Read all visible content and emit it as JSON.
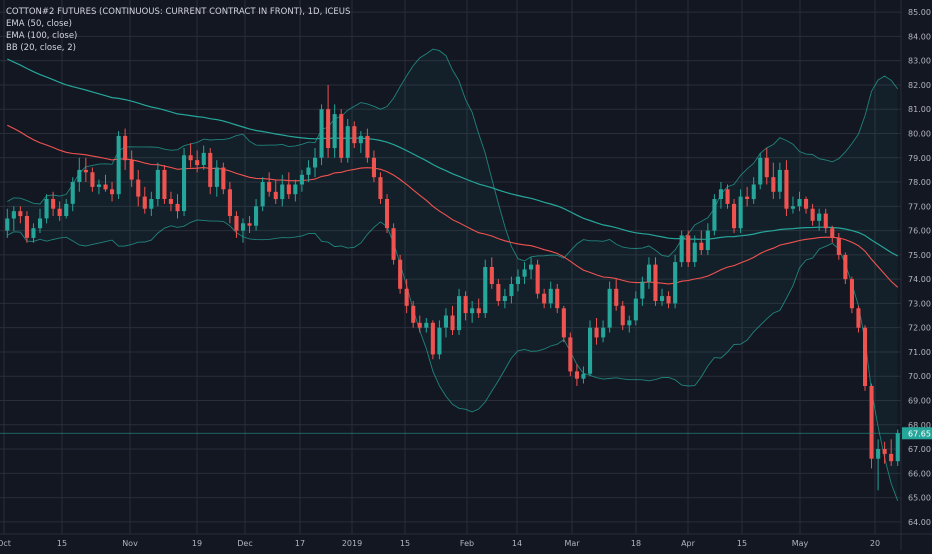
{
  "legend": {
    "title": "COTTON#2 FUTURES (CONTINUOUS: CURRENT CONTRACT IN FRONT), 1D, ICEUS",
    "ema50": "EMA (50, close)",
    "ema100": "EMA (100, close)",
    "bb": "BB (20, close, 2)"
  },
  "chart_data": {
    "type": "candlestick",
    "title": "COTTON#2 FUTURES (CONTINUOUS: CURRENT CONTRACT IN FRONT), 1D, ICEUS",
    "ylim": [
      63.5,
      85.5
    ],
    "grid": true,
    "colors": {
      "up": "#26a69a",
      "down": "#ef5350",
      "ema50": "#ef5350",
      "ema100": "#26a69a",
      "bb": "#26a69a",
      "background": "#131722",
      "grid": "#2a2e39"
    },
    "y_ticks": [
      "85.00",
      "84.00",
      "83.00",
      "82.00",
      "81.00",
      "80.00",
      "79.00",
      "78.00",
      "77.00",
      "76.00",
      "75.00",
      "74.00",
      "73.00",
      "72.00",
      "71.00",
      "70.00",
      "69.00",
      "68.00",
      "67.00",
      "66.00",
      "65.00",
      "64.00"
    ],
    "x_ticks": [
      "Oct",
      "15",
      "Nov",
      "19",
      "Dec",
      "17",
      "2019",
      "15",
      "Feb",
      "14",
      "Mar",
      "18",
      "Apr",
      "15",
      "May",
      "20"
    ],
    "last_price": "67.65",
    "candles": [
      {
        "o": 76.0,
        "h": 76.9,
        "l": 75.7,
        "c": 76.5
      },
      {
        "o": 76.5,
        "h": 77.0,
        "l": 76.0,
        "c": 76.8
      },
      {
        "o": 76.8,
        "h": 77.0,
        "l": 76.3,
        "c": 76.6
      },
      {
        "o": 76.6,
        "h": 76.8,
        "l": 75.5,
        "c": 75.7
      },
      {
        "o": 75.7,
        "h": 76.3,
        "l": 75.5,
        "c": 76.1
      },
      {
        "o": 76.1,
        "h": 76.9,
        "l": 75.9,
        "c": 76.5
      },
      {
        "o": 76.5,
        "h": 77.5,
        "l": 76.3,
        "c": 77.3
      },
      {
        "o": 77.3,
        "h": 77.6,
        "l": 76.6,
        "c": 76.9
      },
      {
        "o": 76.9,
        "h": 77.2,
        "l": 76.4,
        "c": 76.6
      },
      {
        "o": 76.6,
        "h": 77.3,
        "l": 76.5,
        "c": 77.1
      },
      {
        "o": 77.1,
        "h": 78.2,
        "l": 76.8,
        "c": 78.0
      },
      {
        "o": 78.0,
        "h": 79.0,
        "l": 77.6,
        "c": 78.5
      },
      {
        "o": 78.5,
        "h": 79.0,
        "l": 78.0,
        "c": 78.4
      },
      {
        "o": 78.4,
        "h": 78.6,
        "l": 77.6,
        "c": 77.8
      },
      {
        "o": 77.8,
        "h": 78.1,
        "l": 77.5,
        "c": 77.9
      },
      {
        "o": 77.9,
        "h": 78.3,
        "l": 77.6,
        "c": 77.7
      },
      {
        "o": 77.7,
        "h": 78.0,
        "l": 77.2,
        "c": 77.5
      },
      {
        "o": 77.5,
        "h": 80.1,
        "l": 77.3,
        "c": 79.9
      },
      {
        "o": 79.9,
        "h": 80.2,
        "l": 78.5,
        "c": 78.9
      },
      {
        "o": 78.9,
        "h": 79.3,
        "l": 77.8,
        "c": 78.1
      },
      {
        "o": 78.1,
        "h": 78.5,
        "l": 77.0,
        "c": 77.4
      },
      {
        "o": 77.4,
        "h": 77.8,
        "l": 76.7,
        "c": 76.9
      },
      {
        "o": 76.9,
        "h": 77.6,
        "l": 76.6,
        "c": 77.3
      },
      {
        "o": 77.3,
        "h": 78.8,
        "l": 77.0,
        "c": 78.5
      },
      {
        "o": 78.5,
        "h": 78.7,
        "l": 77.1,
        "c": 77.3
      },
      {
        "o": 77.3,
        "h": 77.6,
        "l": 76.8,
        "c": 77.1
      },
      {
        "o": 77.1,
        "h": 77.5,
        "l": 76.5,
        "c": 76.8
      },
      {
        "o": 76.8,
        "h": 79.4,
        "l": 76.6,
        "c": 79.1
      },
      {
        "o": 79.1,
        "h": 79.6,
        "l": 78.6,
        "c": 78.9
      },
      {
        "o": 78.9,
        "h": 79.3,
        "l": 78.4,
        "c": 78.7
      },
      {
        "o": 78.7,
        "h": 79.5,
        "l": 78.5,
        "c": 79.2
      },
      {
        "o": 79.2,
        "h": 79.4,
        "l": 77.5,
        "c": 77.8
      },
      {
        "o": 77.8,
        "h": 78.9,
        "l": 77.4,
        "c": 78.6
      },
      {
        "o": 78.6,
        "h": 78.8,
        "l": 77.5,
        "c": 77.7
      },
      {
        "o": 77.7,
        "h": 78.0,
        "l": 76.3,
        "c": 76.6
      },
      {
        "o": 76.6,
        "h": 76.8,
        "l": 75.7,
        "c": 76.0
      },
      {
        "o": 76.0,
        "h": 76.5,
        "l": 75.5,
        "c": 76.3
      },
      {
        "o": 76.3,
        "h": 76.6,
        "l": 75.9,
        "c": 76.2
      },
      {
        "o": 76.2,
        "h": 77.3,
        "l": 76.0,
        "c": 77.0
      },
      {
        "o": 77.0,
        "h": 78.2,
        "l": 76.8,
        "c": 78.0
      },
      {
        "o": 78.0,
        "h": 78.4,
        "l": 77.4,
        "c": 77.6
      },
      {
        "o": 77.6,
        "h": 78.1,
        "l": 77.1,
        "c": 77.3
      },
      {
        "o": 77.3,
        "h": 78.3,
        "l": 77.0,
        "c": 77.9
      },
      {
        "o": 77.9,
        "h": 78.4,
        "l": 77.3,
        "c": 77.5
      },
      {
        "o": 77.5,
        "h": 78.1,
        "l": 77.2,
        "c": 77.9
      },
      {
        "o": 77.9,
        "h": 78.5,
        "l": 77.6,
        "c": 78.3
      },
      {
        "o": 78.3,
        "h": 78.9,
        "l": 78.0,
        "c": 78.6
      },
      {
        "o": 78.6,
        "h": 79.4,
        "l": 78.2,
        "c": 79.0
      },
      {
        "o": 79.0,
        "h": 81.2,
        "l": 78.7,
        "c": 81.0
      },
      {
        "o": 81.0,
        "h": 82.0,
        "l": 79.0,
        "c": 79.4
      },
      {
        "o": 79.4,
        "h": 81.2,
        "l": 79.0,
        "c": 80.8
      },
      {
        "o": 80.8,
        "h": 81.0,
        "l": 78.8,
        "c": 79.0
      },
      {
        "o": 79.0,
        "h": 80.6,
        "l": 78.8,
        "c": 80.3
      },
      {
        "o": 80.3,
        "h": 80.5,
        "l": 79.4,
        "c": 79.6
      },
      {
        "o": 79.6,
        "h": 80.1,
        "l": 79.2,
        "c": 79.9
      },
      {
        "o": 79.9,
        "h": 80.2,
        "l": 78.8,
        "c": 79.0
      },
      {
        "o": 79.0,
        "h": 79.3,
        "l": 78.0,
        "c": 78.2
      },
      {
        "o": 78.2,
        "h": 78.4,
        "l": 77.1,
        "c": 77.3
      },
      {
        "o": 77.3,
        "h": 77.5,
        "l": 75.9,
        "c": 76.1
      },
      {
        "o": 76.1,
        "h": 76.3,
        "l": 74.6,
        "c": 74.8
      },
      {
        "o": 74.8,
        "h": 75.0,
        "l": 73.4,
        "c": 73.6
      },
      {
        "o": 73.6,
        "h": 74.0,
        "l": 72.6,
        "c": 72.9
      },
      {
        "o": 72.9,
        "h": 73.1,
        "l": 72.0,
        "c": 72.2
      },
      {
        "o": 72.2,
        "h": 72.5,
        "l": 71.8,
        "c": 72.0
      },
      {
        "o": 72.0,
        "h": 72.4,
        "l": 71.8,
        "c": 72.2
      },
      {
        "o": 72.2,
        "h": 72.3,
        "l": 70.7,
        "c": 70.9
      },
      {
        "o": 70.9,
        "h": 72.3,
        "l": 70.7,
        "c": 72.0
      },
      {
        "o": 72.0,
        "h": 72.8,
        "l": 71.6,
        "c": 72.5
      },
      {
        "o": 72.5,
        "h": 72.9,
        "l": 71.7,
        "c": 71.9
      },
      {
        "o": 71.9,
        "h": 73.6,
        "l": 71.7,
        "c": 73.3
      },
      {
        "o": 73.3,
        "h": 73.5,
        "l": 72.3,
        "c": 72.6
      },
      {
        "o": 72.6,
        "h": 73.1,
        "l": 72.2,
        "c": 72.8
      },
      {
        "o": 72.8,
        "h": 73.2,
        "l": 72.4,
        "c": 72.6
      },
      {
        "o": 72.6,
        "h": 74.8,
        "l": 72.4,
        "c": 74.5
      },
      {
        "o": 74.5,
        "h": 74.9,
        "l": 73.6,
        "c": 73.8
      },
      {
        "o": 73.8,
        "h": 74.0,
        "l": 72.9,
        "c": 73.1
      },
      {
        "o": 73.1,
        "h": 73.6,
        "l": 72.8,
        "c": 73.3
      },
      {
        "o": 73.3,
        "h": 74.1,
        "l": 73.0,
        "c": 73.8
      },
      {
        "o": 73.8,
        "h": 74.4,
        "l": 73.5,
        "c": 74.1
      },
      {
        "o": 74.1,
        "h": 74.7,
        "l": 73.8,
        "c": 74.4
      },
      {
        "o": 74.4,
        "h": 74.9,
        "l": 74.0,
        "c": 74.6
      },
      {
        "o": 74.6,
        "h": 74.8,
        "l": 73.2,
        "c": 73.4
      },
      {
        "o": 73.4,
        "h": 73.6,
        "l": 72.8,
        "c": 73.0
      },
      {
        "o": 73.0,
        "h": 73.9,
        "l": 72.8,
        "c": 73.6
      },
      {
        "o": 73.6,
        "h": 73.8,
        "l": 72.6,
        "c": 72.8
      },
      {
        "o": 72.8,
        "h": 72.9,
        "l": 71.4,
        "c": 71.6
      },
      {
        "o": 71.6,
        "h": 71.8,
        "l": 70.0,
        "c": 70.2
      },
      {
        "o": 70.2,
        "h": 70.5,
        "l": 69.6,
        "c": 69.9
      },
      {
        "o": 69.9,
        "h": 70.4,
        "l": 69.7,
        "c": 70.1
      },
      {
        "o": 70.1,
        "h": 72.3,
        "l": 70.0,
        "c": 72.0
      },
      {
        "o": 72.0,
        "h": 72.4,
        "l": 71.3,
        "c": 71.6
      },
      {
        "o": 71.6,
        "h": 72.3,
        "l": 71.4,
        "c": 72.0
      },
      {
        "o": 72.0,
        "h": 73.9,
        "l": 71.8,
        "c": 73.6
      },
      {
        "o": 73.6,
        "h": 74.0,
        "l": 72.7,
        "c": 72.9
      },
      {
        "o": 72.9,
        "h": 73.1,
        "l": 71.9,
        "c": 72.1
      },
      {
        "o": 72.1,
        "h": 72.5,
        "l": 71.8,
        "c": 72.3
      },
      {
        "o": 72.3,
        "h": 73.5,
        "l": 72.1,
        "c": 73.2
      },
      {
        "o": 73.2,
        "h": 74.1,
        "l": 72.9,
        "c": 73.9
      },
      {
        "o": 73.9,
        "h": 74.9,
        "l": 73.6,
        "c": 74.6
      },
      {
        "o": 74.6,
        "h": 74.9,
        "l": 72.9,
        "c": 73.1
      },
      {
        "o": 73.1,
        "h": 73.6,
        "l": 72.9,
        "c": 73.3
      },
      {
        "o": 73.3,
        "h": 73.5,
        "l": 72.8,
        "c": 73.0
      },
      {
        "o": 73.0,
        "h": 75.0,
        "l": 72.8,
        "c": 74.7
      },
      {
        "o": 74.7,
        "h": 76.0,
        "l": 74.5,
        "c": 75.8
      },
      {
        "o": 75.8,
        "h": 76.0,
        "l": 74.5,
        "c": 74.7
      },
      {
        "o": 74.7,
        "h": 75.8,
        "l": 74.5,
        "c": 75.5
      },
      {
        "o": 75.5,
        "h": 76.0,
        "l": 75.0,
        "c": 75.2
      },
      {
        "o": 75.2,
        "h": 76.3,
        "l": 75.0,
        "c": 76.0
      },
      {
        "o": 76.0,
        "h": 77.5,
        "l": 75.8,
        "c": 77.3
      },
      {
        "o": 77.3,
        "h": 78.0,
        "l": 76.9,
        "c": 77.7
      },
      {
        "o": 77.7,
        "h": 77.9,
        "l": 76.9,
        "c": 77.1
      },
      {
        "o": 77.1,
        "h": 77.3,
        "l": 75.9,
        "c": 76.1
      },
      {
        "o": 76.1,
        "h": 77.7,
        "l": 75.9,
        "c": 77.4
      },
      {
        "o": 77.4,
        "h": 77.8,
        "l": 77.0,
        "c": 77.3
      },
      {
        "o": 77.3,
        "h": 78.2,
        "l": 77.1,
        "c": 77.9
      },
      {
        "o": 77.9,
        "h": 79.2,
        "l": 77.7,
        "c": 79.0
      },
      {
        "o": 79.0,
        "h": 79.4,
        "l": 77.9,
        "c": 78.2
      },
      {
        "o": 78.2,
        "h": 78.8,
        "l": 77.3,
        "c": 77.6
      },
      {
        "o": 77.6,
        "h": 78.8,
        "l": 77.3,
        "c": 78.5
      },
      {
        "o": 78.5,
        "h": 78.9,
        "l": 76.6,
        "c": 76.9
      },
      {
        "o": 76.9,
        "h": 77.4,
        "l": 76.7,
        "c": 77.0
      },
      {
        "o": 77.0,
        "h": 77.6,
        "l": 76.8,
        "c": 77.3
      },
      {
        "o": 77.3,
        "h": 77.4,
        "l": 76.7,
        "c": 76.9
      },
      {
        "o": 76.9,
        "h": 77.1,
        "l": 76.2,
        "c": 76.4
      },
      {
        "o": 76.4,
        "h": 76.9,
        "l": 76.0,
        "c": 76.7
      },
      {
        "o": 76.7,
        "h": 76.9,
        "l": 75.9,
        "c": 76.1
      },
      {
        "o": 76.1,
        "h": 76.2,
        "l": 75.5,
        "c": 75.7
      },
      {
        "o": 75.7,
        "h": 75.9,
        "l": 74.8,
        "c": 75.0
      },
      {
        "o": 75.0,
        "h": 75.1,
        "l": 73.8,
        "c": 74.0
      },
      {
        "o": 74.0,
        "h": 74.1,
        "l": 72.6,
        "c": 72.8
      },
      {
        "o": 72.8,
        "h": 72.9,
        "l": 71.8,
        "c": 72.0
      },
      {
        "o": 72.0,
        "h": 72.1,
        "l": 69.4,
        "c": 69.6
      },
      {
        "o": 69.6,
        "h": 69.7,
        "l": 66.2,
        "c": 66.6
      },
      {
        "o": 66.6,
        "h": 67.4,
        "l": 65.3,
        "c": 67.0
      },
      {
        "o": 67.0,
        "h": 67.3,
        "l": 66.4,
        "c": 66.8
      },
      {
        "o": 66.8,
        "h": 67.4,
        "l": 66.3,
        "c": 66.5
      },
      {
        "o": 66.5,
        "h": 67.8,
        "l": 66.3,
        "c": 67.65
      }
    ]
  }
}
